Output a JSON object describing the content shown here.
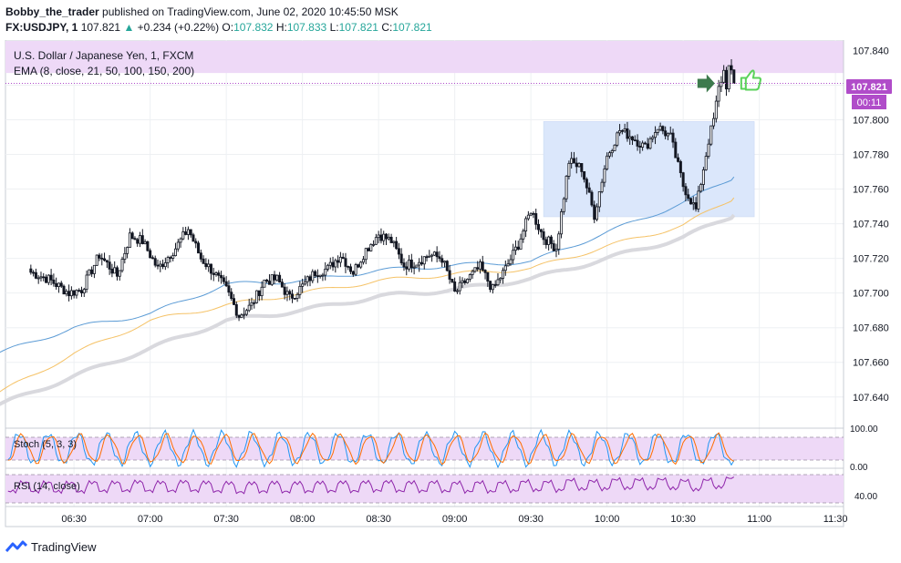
{
  "header": {
    "author": "Bobby_the_trader",
    "published_text": "published on TradingView.com, June 02, 2020 10:45:50 MSK",
    "symbol": "FX:USDJPY, 1",
    "last": "107.821",
    "change": "+0.234 (+0.22%)",
    "ohlc": [
      {
        "k": "O:",
        "v": "107.832"
      },
      {
        "k": "H:",
        "v": "107.833"
      },
      {
        "k": "L:",
        "v": "107.821"
      },
      {
        "k": "C:",
        "v": "107.821"
      }
    ]
  },
  "legend": {
    "title": "U.S. Dollar / Japanese Yen, 1, FXCM",
    "ema": "EMA (8, close, 21, 50, 100, 150, 200)"
  },
  "price_badge": {
    "value": "107.821",
    "timer": "00:11"
  },
  "indicators": {
    "stoch": {
      "label": "Stoch (5, 3, 3)",
      "ticks": [
        "100.00",
        "0.00"
      ]
    },
    "rsi": {
      "label": "RSI (14, close)",
      "ticks": [
        "40.00"
      ]
    }
  },
  "footer": {
    "brand": "TradingView"
  },
  "colors": {
    "up_candle": "#ffffff",
    "down_candle": "#131722",
    "ema_blue": "#5b9bd5",
    "ema_orange": "#f5c266",
    "ema_gray": "#d9d9de",
    "box": "#dbe7fb",
    "band": "#eed9f7",
    "price_line": "#b04cc9",
    "arrow": "#3d7a4d",
    "thumb": "#5ad25a"
  },
  "chart_data": {
    "type": "candlestick",
    "title": "U.S. Dollar / Japanese Yen, 1, FXCM",
    "timeframe_minutes": 1,
    "y_ticks": [
      "107.840",
      "107.820",
      "107.800",
      "107.780",
      "107.760",
      "107.740",
      "107.720",
      "107.700",
      "107.680",
      "107.660",
      "107.640"
    ],
    "x_ticks": [
      "06:30",
      "07:00",
      "07:30",
      "08:00",
      "08:30",
      "09:00",
      "09:30",
      "10:00",
      "10:30",
      "11:00",
      "11:30"
    ],
    "ylim": [
      107.622,
      107.846
    ],
    "last_price": 107.821,
    "close_path": [
      [
        "06:13",
        107.712
      ],
      [
        "06:20",
        107.708
      ],
      [
        "06:28",
        107.7
      ],
      [
        "06:33",
        107.702
      ],
      [
        "06:40",
        107.722
      ],
      [
        "06:47",
        107.71
      ],
      [
        "06:52",
        107.733
      ],
      [
        "06:57",
        107.73
      ],
      [
        "07:03",
        107.714
      ],
      [
        "07:10",
        107.726
      ],
      [
        "07:15",
        107.737
      ],
      [
        "07:20",
        107.72
      ],
      [
        "07:25",
        107.712
      ],
      [
        "07:30",
        107.702
      ],
      [
        "07:35",
        107.687
      ],
      [
        "07:40",
        107.693
      ],
      [
        "07:45",
        107.707
      ],
      [
        "07:50",
        107.708
      ],
      [
        "07:55",
        107.697
      ],
      [
        "08:00",
        107.704
      ],
      [
        "08:05",
        107.712
      ],
      [
        "08:10",
        107.714
      ],
      [
        "08:15",
        107.722
      ],
      [
        "08:20",
        107.712
      ],
      [
        "08:25",
        107.725
      ],
      [
        "08:30",
        107.734
      ],
      [
        "08:35",
        107.73
      ],
      [
        "08:40",
        107.716
      ],
      [
        "08:45",
        107.718
      ],
      [
        "08:50",
        107.722
      ],
      [
        "08:55",
        107.72
      ],
      [
        "09:00",
        107.7
      ],
      [
        "09:05",
        107.708
      ],
      [
        "09:10",
        107.715
      ],
      [
        "09:15",
        107.702
      ],
      [
        "09:20",
        107.714
      ],
      [
        "09:25",
        107.728
      ],
      [
        "09:30",
        107.748
      ],
      [
        "09:35",
        107.732
      ],
      [
        "09:40",
        107.726
      ],
      [
        "09:45",
        107.776
      ],
      [
        "09:50",
        107.772
      ],
      [
        "09:55",
        107.745
      ],
      [
        "10:00",
        107.779
      ],
      [
        "10:05",
        107.794
      ],
      [
        "10:10",
        107.79
      ],
      [
        "10:15",
        107.784
      ],
      [
        "10:20",
        107.796
      ],
      [
        "10:25",
        107.79
      ],
      [
        "10:30",
        107.762
      ],
      [
        "10:35",
        107.748
      ],
      [
        "10:40",
        107.788
      ],
      [
        "10:42",
        107.8
      ],
      [
        "10:44",
        107.818
      ],
      [
        "10:46",
        107.828
      ],
      [
        "10:47",
        107.82
      ],
      [
        "10:48",
        107.83
      ],
      [
        "10:49",
        107.826
      ],
      [
        "10:50",
        107.821
      ]
    ],
    "ema_blue": [
      [
        "06:00",
        107.665
      ],
      [
        "06:30",
        107.68
      ],
      [
        "07:00",
        107.688
      ],
      [
        "07:30",
        107.705
      ],
      [
        "08:00",
        107.707
      ],
      [
        "08:30",
        107.713
      ],
      [
        "09:00",
        107.716
      ],
      [
        "09:30",
        107.718
      ],
      [
        "10:00",
        107.735
      ],
      [
        "10:30",
        107.752
      ],
      [
        "10:50",
        107.767
      ]
    ],
    "ema_orange": [
      [
        "06:00",
        107.642
      ],
      [
        "06:30",
        107.665
      ],
      [
        "07:00",
        107.684
      ],
      [
        "07:30",
        107.693
      ],
      [
        "08:00",
        107.7
      ],
      [
        "08:30",
        107.707
      ],
      [
        "09:00",
        107.711
      ],
      [
        "09:30",
        107.714
      ],
      [
        "10:00",
        107.727
      ],
      [
        "10:30",
        107.739
      ],
      [
        "10:50",
        107.755
      ]
    ],
    "ema_gray": [
      [
        "06:00",
        107.635
      ],
      [
        "06:30",
        107.652
      ],
      [
        "07:00",
        107.668
      ],
      [
        "07:30",
        107.684
      ],
      [
        "08:00",
        107.69
      ],
      [
        "08:30",
        107.698
      ],
      [
        "09:00",
        107.702
      ],
      [
        "09:30",
        107.708
      ],
      [
        "10:00",
        107.72
      ],
      [
        "10:30",
        107.732
      ],
      [
        "10:50",
        107.745
      ]
    ],
    "highlight_box": {
      "time_from": "09:35",
      "time_to": "10:58",
      "price_from": 107.744,
      "price_to": 107.799
    },
    "horizontal_band": {
      "price_from": 107.827,
      "price_to": 107.848
    },
    "stochastic_band": [
      20,
      80
    ],
    "rsi_band": [
      30,
      70
    ]
  }
}
